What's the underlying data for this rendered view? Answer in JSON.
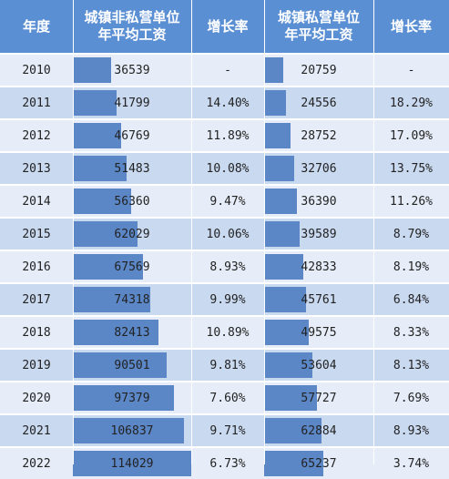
{
  "headers": {
    "year": "年度",
    "nonprivate": [
      "城镇非私营单位",
      "年平均工资"
    ],
    "growth1": "增长率",
    "private": [
      "城镇私营单位",
      "年平均工资"
    ],
    "growth2": "增长率"
  },
  "colors": {
    "header_bg": "#5b8fd3",
    "row_light": "#e6edf8",
    "row_dark": "#c9d9f0",
    "bar": "#5b87c7"
  },
  "chart_data": {
    "type": "table",
    "columns": [
      "年度",
      "城镇非私营单位年平均工资",
      "增长率",
      "城镇私营单位年平均工资",
      "增长率"
    ],
    "rows": [
      {
        "year": "2010",
        "nonprivate": "36539",
        "growth1": "-",
        "private": "20759",
        "growth2": "-"
      },
      {
        "year": "2011",
        "nonprivate": "41799",
        "growth1": "14.40%",
        "private": "24556",
        "growth2": "18.29%"
      },
      {
        "year": "2012",
        "nonprivate": "46769",
        "growth1": "11.89%",
        "private": "28752",
        "growth2": "17.09%"
      },
      {
        "year": "2013",
        "nonprivate": "51483",
        "growth1": "10.08%",
        "private": "32706",
        "growth2": "13.75%"
      },
      {
        "year": "2014",
        "nonprivate": "56360",
        "growth1": "9.47%",
        "private": "36390",
        "growth2": "11.26%"
      },
      {
        "year": "2015",
        "nonprivate": "62029",
        "growth1": "10.06%",
        "private": "39589",
        "growth2": "8.79%"
      },
      {
        "year": "2016",
        "nonprivate": "67569",
        "growth1": "8.93%",
        "private": "42833",
        "growth2": "8.19%"
      },
      {
        "year": "2017",
        "nonprivate": "74318",
        "growth1": "9.99%",
        "private": "45761",
        "growth2": "6.84%"
      },
      {
        "year": "2018",
        "nonprivate": "82413",
        "growth1": "10.89%",
        "private": "49575",
        "growth2": "8.33%"
      },
      {
        "year": "2019",
        "nonprivate": "90501",
        "growth1": "9.81%",
        "private": "53604",
        "growth2": "8.13%"
      },
      {
        "year": "2020",
        "nonprivate": "97379",
        "growth1": "7.60%",
        "private": "57727",
        "growth2": "7.69%"
      },
      {
        "year": "2021",
        "nonprivate": "106837",
        "growth1": "9.71%",
        "private": "62884",
        "growth2": "8.93%"
      },
      {
        "year": "2022",
        "nonprivate": "114029",
        "growth1": "6.73%",
        "private": "65237",
        "growth2": "3.74%"
      }
    ]
  }
}
